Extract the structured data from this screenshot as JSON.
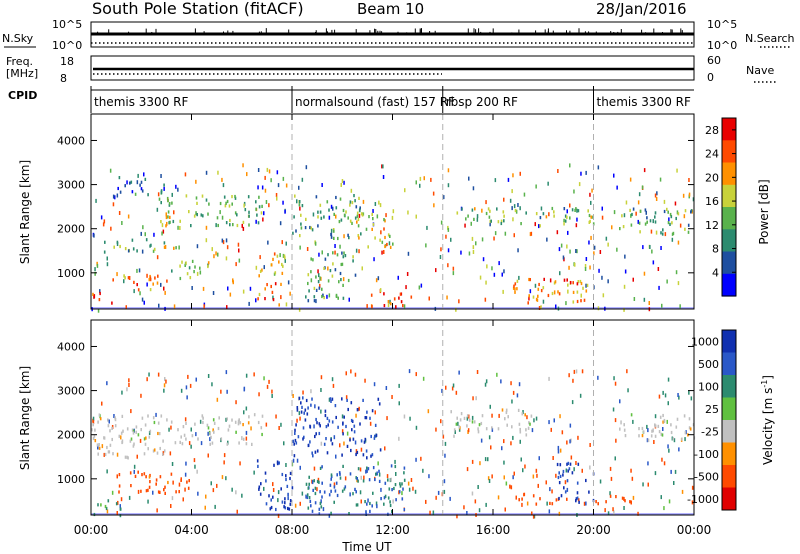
{
  "header": {
    "title": "South Pole Station (fitACF)",
    "beam": "Beam 10",
    "date": "28/Jan/2016"
  },
  "status_panels": {
    "nsky_label": "N.Sky",
    "nsearch_label": "N.Search",
    "noise_ticks": [
      "10^5",
      "10^0"
    ],
    "freq_label_line1": "Freq.",
    "freq_label_line2": "[MHz]",
    "freq_ticks": [
      "18",
      "8"
    ],
    "nave_label": "Nave",
    "nave_ticks": [
      "60",
      "0"
    ],
    "cpid_label": "CPID",
    "cpid_segments": [
      {
        "label": "themis 3300 RF",
        "start_h": 0.0,
        "end_h": 8.0
      },
      {
        "label": "normalsound (fast) 157 RF",
        "start_h": 8.0,
        "end_h": 14.0
      },
      {
        "label": "rbsp 200 RF",
        "start_h": 14.0,
        "end_h": 20.0
      },
      {
        "label": "themis 3300 RF",
        "start_h": 20.0,
        "end_h": 24.0
      }
    ]
  },
  "panels": {
    "ylabel": "Slant Range [km]",
    "xlabel": "Time UT",
    "x_ticks": [
      "00:00",
      "04:00",
      "08:00",
      "12:00",
      "16:00",
      "20:00",
      "00:00"
    ],
    "y_ticks": [
      "1000",
      "2000",
      "3000",
      "4000"
    ],
    "power_label": "Power [dB]",
    "velocity_label": "Velocity [m s",
    "velocity_label_sup": "-1",
    "velocity_label_end": "]"
  },
  "chart_data": [
    {
      "type": "heatmap",
      "title": "",
      "quantity": "Power [dB]",
      "xlabel": "Time UT",
      "ylabel": "Slant Range [km]",
      "xlim_hours": [
        0,
        24
      ],
      "ylim_km": [
        180,
        4600
      ],
      "colorbar_ticks": [
        4,
        8,
        12,
        16,
        20,
        24,
        28
      ],
      "colorbar_range": [
        0,
        30
      ],
      "colors": [
        "#0000ff",
        "#1e4fa0",
        "#2c8b6f",
        "#59b24c",
        "#c8d23a",
        "#ff9000",
        "#ff4a00",
        "#e80000"
      ],
      "regions": [
        {
          "t": [
            0.0,
            0.8
          ],
          "r": [
            300,
            600
          ],
          "level": 27
        },
        {
          "t": [
            0.8,
            3.0
          ],
          "r": [
            650,
            1000
          ],
          "level": 22
        },
        {
          "t": [
            3.0,
            5.0
          ],
          "r": [
            900,
            1300
          ],
          "level": 14
        },
        {
          "t": [
            0.5,
            3.5
          ],
          "r": [
            1500,
            1800
          ],
          "level": 13
        },
        {
          "t": [
            2.5,
            6.8
          ],
          "r": [
            2100,
            2800
          ],
          "level": 14
        },
        {
          "t": [
            1.0,
            3.0
          ],
          "r": [
            2800,
            3200
          ],
          "level": 6
        },
        {
          "t": [
            6.6,
            7.6
          ],
          "r": [
            300,
            800
          ],
          "level": 24
        },
        {
          "t": [
            6.6,
            7.8
          ],
          "r": [
            900,
            1500
          ],
          "level": 18
        },
        {
          "t": [
            8.0,
            11.0
          ],
          "r": [
            1800,
            2800
          ],
          "level": 12
        },
        {
          "t": [
            8.5,
            10.5
          ],
          "r": [
            400,
            1500
          ],
          "level": 10
        },
        {
          "t": [
            10.5,
            12.0
          ],
          "r": [
            1600,
            2400
          ],
          "level": 18
        },
        {
          "t": [
            11.0,
            12.8
          ],
          "r": [
            250,
            600
          ],
          "level": 24
        },
        {
          "t": [
            14.5,
            20.0
          ],
          "r": [
            2100,
            2500
          ],
          "level": 13
        },
        {
          "t": [
            16.5,
            19.8
          ],
          "r": [
            300,
            900
          ],
          "level": 22
        },
        {
          "t": [
            21.0,
            24.0
          ],
          "r": [
            1900,
            2500
          ],
          "level": 12
        }
      ]
    },
    {
      "type": "heatmap",
      "title": "",
      "quantity": "Velocity [m s-1]",
      "xlabel": "Time UT",
      "ylabel": "Slant Range [km]",
      "xlim_hours": [
        0,
        24
      ],
      "ylim_km": [
        180,
        4600
      ],
      "colorbar_ticks": [
        1000,
        500,
        100,
        25,
        -25,
        -100,
        -500,
        -1000
      ],
      "colors": [
        "#1030b0",
        "#2a58c8",
        "#2c8b6f",
        "#60c040",
        "#c0c0c0",
        "#ff9000",
        "#ff4a00",
        "#e00000"
      ],
      "regions": [
        {
          "t": [
            0.0,
            6.8
          ],
          "r": [
            1800,
            2500
          ],
          "value": 0
        },
        {
          "t": [
            0.0,
            3.0
          ],
          "r": [
            1500,
            1800
          ],
          "value": 0
        },
        {
          "t": [
            1.0,
            4.0
          ],
          "r": [
            700,
            1200
          ],
          "value": -150
        },
        {
          "t": [
            0.0,
            1.2
          ],
          "r": [
            200,
            600
          ],
          "value": 60
        },
        {
          "t": [
            6.6,
            8.0
          ],
          "r": [
            300,
            1500
          ],
          "value": 800
        },
        {
          "t": [
            8.0,
            11.5
          ],
          "r": [
            1500,
            2900
          ],
          "value": 700
        },
        {
          "t": [
            8.5,
            12.5
          ],
          "r": [
            200,
            1400
          ],
          "value": 300
        },
        {
          "t": [
            14.3,
            17.5
          ],
          "r": [
            2000,
            2600
          ],
          "value": 0
        },
        {
          "t": [
            17.0,
            19.5
          ],
          "r": [
            450,
            700
          ],
          "value": -300
        },
        {
          "t": [
            18.5,
            20.0
          ],
          "r": [
            500,
            1400
          ],
          "value": 900
        },
        {
          "t": [
            20.0,
            21.8
          ],
          "r": [
            450,
            650
          ],
          "value": -300
        },
        {
          "t": [
            21.0,
            24.0
          ],
          "r": [
            1900,
            2500
          ],
          "value": 0
        }
      ]
    }
  ]
}
